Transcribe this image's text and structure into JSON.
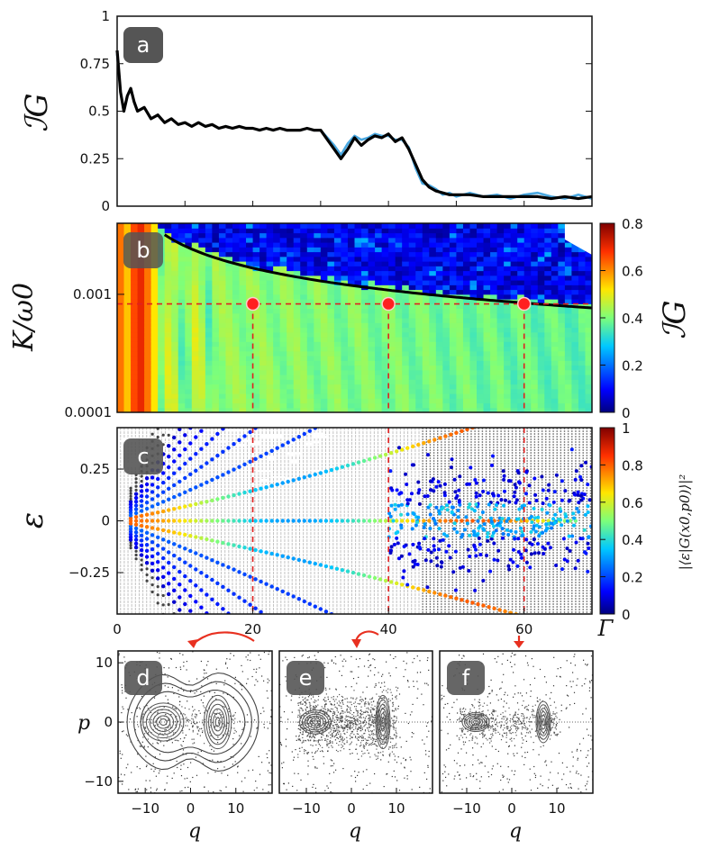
{
  "chart_data": [
    {
      "panel": "a",
      "type": "line",
      "panel_label": "a",
      "ylabel": "ℐG",
      "xlim": [
        0,
        70
      ],
      "ylim": [
        0,
        1
      ],
      "yticks": [
        "0",
        "0.25",
        "0.5",
        "0.75",
        "1"
      ],
      "series": [
        {
          "color": "#000000",
          "x": [
            0,
            0.5,
            1,
            1.5,
            2,
            2.5,
            3,
            4,
            5,
            6,
            7,
            8,
            9,
            10,
            11,
            12,
            13,
            14,
            15,
            16,
            17,
            18,
            19,
            20,
            21,
            22,
            23,
            24,
            25,
            26,
            27,
            28,
            29,
            30,
            31,
            32,
            33,
            34,
            35,
            36,
            37,
            38,
            39,
            40,
            41,
            42,
            43,
            44,
            45,
            46,
            47,
            48,
            49,
            50,
            52,
            54,
            56,
            58,
            60,
            62,
            64,
            66,
            68,
            70
          ],
          "y": [
            0.82,
            0.6,
            0.5,
            0.58,
            0.62,
            0.55,
            0.5,
            0.52,
            0.46,
            0.48,
            0.44,
            0.46,
            0.43,
            0.44,
            0.42,
            0.44,
            0.42,
            0.43,
            0.41,
            0.42,
            0.41,
            0.42,
            0.41,
            0.41,
            0.4,
            0.41,
            0.4,
            0.41,
            0.4,
            0.4,
            0.4,
            0.41,
            0.4,
            0.4,
            0.35,
            0.3,
            0.25,
            0.3,
            0.36,
            0.32,
            0.35,
            0.37,
            0.36,
            0.38,
            0.34,
            0.36,
            0.3,
            0.22,
            0.14,
            0.1,
            0.08,
            0.07,
            0.06,
            0.06,
            0.06,
            0.05,
            0.05,
            0.05,
            0.05,
            0.05,
            0.04,
            0.05,
            0.04,
            0.05
          ]
        },
        {
          "color": "#4aa8e0",
          "x": [
            0,
            0.5,
            1,
            1.5,
            2,
            2.5,
            3,
            4,
            5,
            6,
            7,
            8,
            9,
            10,
            11,
            12,
            13,
            14,
            15,
            16,
            17,
            18,
            19,
            20,
            21,
            22,
            23,
            24,
            25,
            26,
            27,
            28,
            29,
            30,
            31,
            32,
            33,
            34,
            35,
            36,
            37,
            38,
            39,
            40,
            41,
            42,
            43,
            44,
            45,
            46,
            47,
            48,
            49,
            50,
            52,
            54,
            56,
            58,
            60,
            62,
            64,
            66,
            68,
            70
          ],
          "y": [
            0.8,
            0.6,
            0.5,
            0.58,
            0.62,
            0.55,
            0.5,
            0.52,
            0.46,
            0.48,
            0.44,
            0.46,
            0.43,
            0.44,
            0.42,
            0.44,
            0.42,
            0.43,
            0.41,
            0.42,
            0.41,
            0.42,
            0.41,
            0.41,
            0.4,
            0.41,
            0.4,
            0.41,
            0.4,
            0.4,
            0.4,
            0.41,
            0.4,
            0.4,
            0.36,
            0.32,
            0.27,
            0.33,
            0.37,
            0.35,
            0.36,
            0.38,
            0.37,
            0.37,
            0.35,
            0.35,
            0.31,
            0.2,
            0.12,
            0.11,
            0.09,
            0.06,
            0.07,
            0.05,
            0.07,
            0.05,
            0.06,
            0.04,
            0.06,
            0.07,
            0.05,
            0.04,
            0.06,
            0.04
          ]
        }
      ]
    },
    {
      "panel": "b",
      "type": "heatmap",
      "panel_label": "b",
      "ylabel": "K/ω0",
      "xlim": [
        0,
        70
      ],
      "ylog": true,
      "ylim": [
        0.0001,
        0.004
      ],
      "yticks": [
        "0.0001",
        "0.001"
      ],
      "colorbar": {
        "label": "ℐG",
        "ticks": [
          "0",
          "0.2",
          "0.4",
          "0.6",
          "0.8"
        ],
        "range": [
          0,
          0.8
        ]
      },
      "boundary_curve_color": "#000000",
      "horizontal_reference_K": 0.00083,
      "marker_Gamma": [
        20,
        40,
        60
      ],
      "marker_color": "#ff2020"
    },
    {
      "panel": "c",
      "type": "scatter",
      "panel_label": "c",
      "ylabel": "ε",
      "xlabel": "Γ",
      "xlim": [
        0,
        70
      ],
      "ylim": [
        -0.45,
        0.45
      ],
      "yticks": [
        "−0.25",
        "0",
        "0.25"
      ],
      "xticks": [
        "0",
        "20",
        "40",
        "60"
      ],
      "colorbar": {
        "label": "|⟨ε|G(x0,p0)⟩|²",
        "ticks": [
          "0",
          "0.2",
          "0.4",
          "0.6",
          "0.8",
          "1"
        ],
        "range": [
          0,
          1
        ]
      },
      "vertical_reference_Gamma": [
        20,
        40,
        60
      ]
    },
    {
      "panel": "d",
      "type": "scatter",
      "panel_label": "d",
      "xlabel": "q",
      "ylabel": "p",
      "xlim": [
        -16,
        18
      ],
      "ylim": [
        -12,
        12
      ],
      "xticks": [
        "−10",
        "0",
        "10"
      ],
      "yticks": [
        "−10",
        "0",
        "10"
      ],
      "Gamma": 20
    },
    {
      "panel": "e",
      "type": "scatter",
      "panel_label": "e",
      "xlabel": "q",
      "xlim": [
        -16,
        18
      ],
      "ylim": [
        -12,
        12
      ],
      "xticks": [
        "−10",
        "0",
        "10"
      ],
      "Gamma": 40
    },
    {
      "panel": "f",
      "type": "scatter",
      "panel_label": "f",
      "xlabel": "q",
      "xlim": [
        -16,
        18
      ],
      "ylim": [
        -12,
        12
      ],
      "xticks": [
        "−10",
        "0",
        "10"
      ],
      "Gamma": 60
    }
  ],
  "colors": {
    "frame": "#111111",
    "reference_line": "#e02020",
    "badge_bg": "#555555",
    "arrow": "#e83020"
  }
}
